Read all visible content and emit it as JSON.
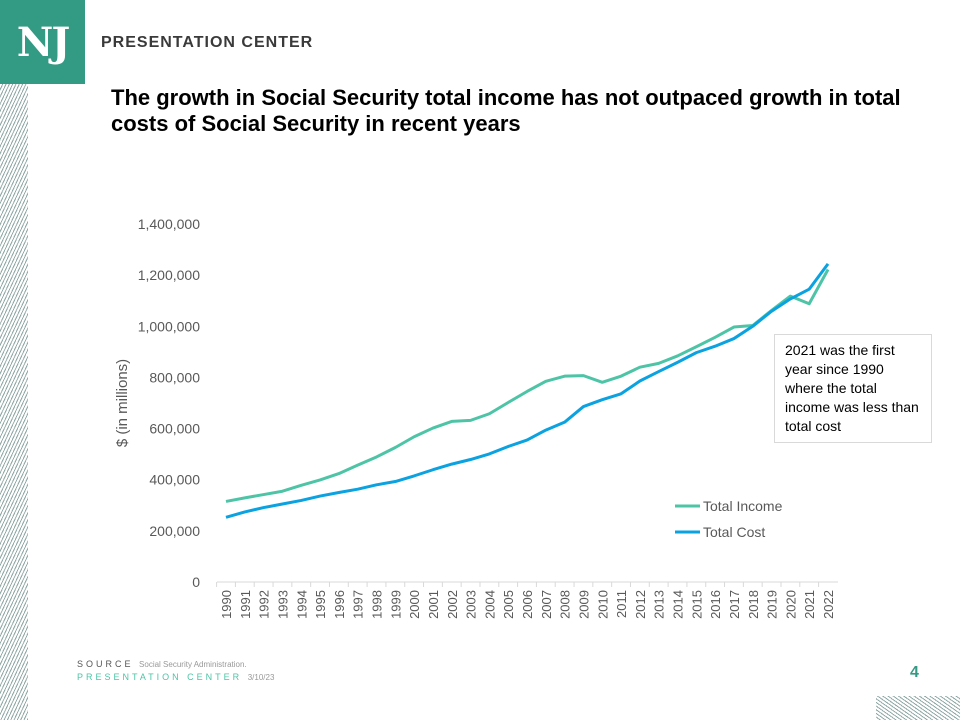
{
  "header": {
    "logo": "NJ",
    "brand": "PRESENTATION CENTER"
  },
  "title": "The growth in Social Security total income has not outpaced growth in total costs of Social Security in recent years",
  "annotation": "2021 was the first year since 1990 where the total income was less than total cost",
  "footer": {
    "source_label": "SOURCE",
    "source_value": "Social Security Administration.",
    "center_label": "PRESENTATION CENTER",
    "date": "3/10/23",
    "page_number": "4"
  },
  "colors": {
    "brand": "#339a84",
    "total_income": "#4dc4a6",
    "total_cost": "#0aa2e0"
  },
  "chart_data": {
    "type": "line",
    "title": "",
    "xlabel": "",
    "ylabel": "$ (in millions)",
    "ylim": [
      0,
      1400000
    ],
    "yticks": [
      "0",
      "200,000",
      "400,000",
      "600,000",
      "800,000",
      "1,000,000",
      "1,200,000",
      "1,400,000"
    ],
    "x": [
      1990,
      1991,
      1992,
      1993,
      1994,
      1995,
      1996,
      1997,
      1998,
      1999,
      2000,
      2001,
      2002,
      2003,
      2004,
      2005,
      2006,
      2007,
      2008,
      2009,
      2010,
      2011,
      2012,
      2013,
      2014,
      2015,
      2016,
      2017,
      2018,
      2019,
      2020,
      2021,
      2022
    ],
    "grid": false,
    "legend": "right",
    "series": [
      {
        "name": "Total Income",
        "values": [
          315000,
          329000,
          342000,
          355000,
          378000,
          399000,
          424000,
          457000,
          489000,
          526000,
          568000,
          602000,
          628000,
          632000,
          658000,
          702000,
          745000,
          785000,
          805000,
          807000,
          781000,
          805000,
          840000,
          855000,
          884000,
          920000,
          957000,
          997000,
          1003000,
          1062000,
          1118000,
          1088000,
          1222000
        ]
      },
      {
        "name": "Total Cost",
        "values": [
          253000,
          274000,
          291000,
          305000,
          319000,
          336000,
          350000,
          363000,
          380000,
          393000,
          415000,
          439000,
          461000,
          479000,
          501000,
          530000,
          555000,
          594000,
          625000,
          686000,
          713000,
          736000,
          786000,
          823000,
          859000,
          897000,
          922000,
          952000,
          1000000,
          1059000,
          1107000,
          1145000,
          1244000
        ]
      }
    ]
  }
}
